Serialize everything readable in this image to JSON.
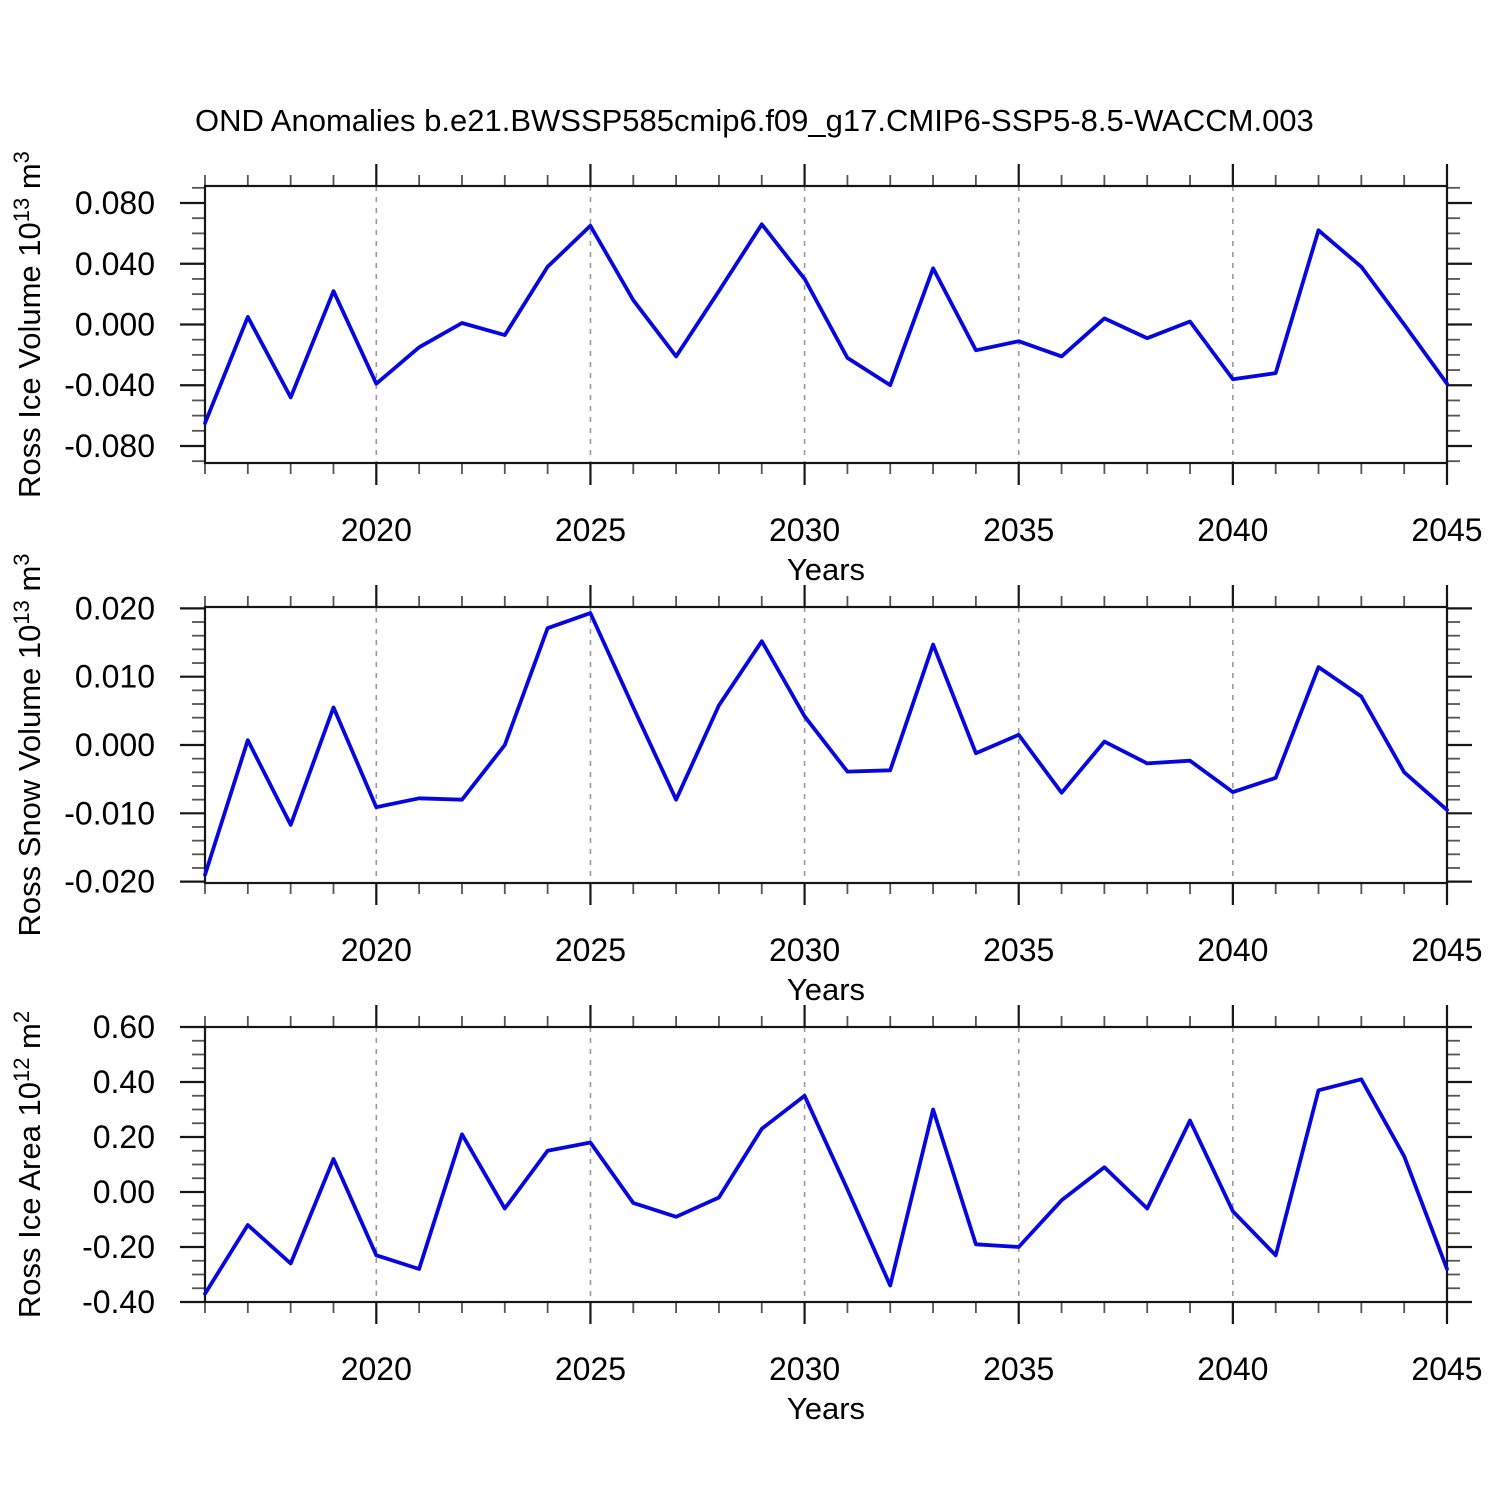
{
  "title": "OND Anomalies b.e21.BWSSP585cmip6.f09_g17.CMIP6-SSP5-8.5-WACCM.003",
  "colors": {
    "series_line": "#0606e0",
    "grid_dash": "#9a9a9a",
    "axis": "#161616",
    "minor_tick": "#555555",
    "text": "#000000",
    "background": "#ffffff"
  },
  "chart_data": [
    {
      "type": "line",
      "name": "ross-ice-volume",
      "ylabel_segments": [
        {
          "t": "Ross Ice Volume 10"
        },
        {
          "t": "13",
          "sup": true
        },
        {
          "t": " m"
        },
        {
          "t": "3",
          "sup": true
        }
      ],
      "xlabel": "Years",
      "xlim": [
        2016,
        2045
      ],
      "ylim": [
        -0.0912,
        0.0912
      ],
      "grid_on": true,
      "grid_years": [
        2020,
        2025,
        2030,
        2035,
        2040,
        2045
      ],
      "xticks_major": [
        {
          "v": 2020,
          "label": "2020"
        },
        {
          "v": 2025,
          "label": "2025"
        },
        {
          "v": 2030,
          "label": "2030"
        },
        {
          "v": 2035,
          "label": "2035"
        },
        {
          "v": 2040,
          "label": "2040"
        },
        {
          "v": 2045,
          "label": "2045"
        }
      ],
      "yticks": [
        {
          "v": 0.08,
          "label": "0.080"
        },
        {
          "v": 0.04,
          "label": "0.040"
        },
        {
          "v": 0.0,
          "label": "0.000"
        },
        {
          "v": -0.04,
          "label": "-0.040"
        },
        {
          "v": -0.08,
          "label": "-0.080"
        }
      ],
      "yticks_minor": [
        -0.09,
        -0.07,
        -0.06,
        -0.05,
        -0.03,
        -0.02,
        -0.01,
        0.01,
        0.02,
        0.03,
        0.05,
        0.06,
        0.07,
        0.09
      ],
      "x": [
        2016,
        2017,
        2018,
        2019,
        2020,
        2021,
        2022,
        2023,
        2024,
        2025,
        2026,
        2027,
        2028,
        2029,
        2030,
        2031,
        2032,
        2033,
        2034,
        2035,
        2036,
        2037,
        2038,
        2039,
        2040,
        2041,
        2042,
        2043,
        2044,
        2045
      ],
      "values": [
        -0.065,
        0.005,
        -0.048,
        0.022,
        -0.039,
        -0.015,
        0.001,
        -0.007,
        0.038,
        0.065,
        0.016,
        -0.021,
        0.022,
        0.066,
        0.03,
        -0.022,
        -0.04,
        0.037,
        -0.017,
        -0.011,
        -0.021,
        0.004,
        -0.009,
        0.002,
        -0.036,
        -0.032,
        0.062,
        0.038,
        0.0,
        -0.039
      ]
    },
    {
      "type": "line",
      "name": "ross-snow-volume",
      "ylabel_segments": [
        {
          "t": "Ross Snow Volume 10"
        },
        {
          "t": "13",
          "sup": true
        },
        {
          "t": " m"
        },
        {
          "t": "3",
          "sup": true
        }
      ],
      "xlabel": "Years",
      "xlim": [
        2016,
        2045
      ],
      "ylim": [
        -0.0202,
        0.0202
      ],
      "grid_on": true,
      "grid_years": [
        2020,
        2025,
        2030,
        2035,
        2040,
        2045
      ],
      "xticks_major": [
        {
          "v": 2020,
          "label": "2020"
        },
        {
          "v": 2025,
          "label": "2025"
        },
        {
          "v": 2030,
          "label": "2030"
        },
        {
          "v": 2035,
          "label": "2035"
        },
        {
          "v": 2040,
          "label": "2040"
        },
        {
          "v": 2045,
          "label": "2045"
        }
      ],
      "yticks": [
        {
          "v": 0.02,
          "label": "0.020"
        },
        {
          "v": 0.01,
          "label": "0.010"
        },
        {
          "v": 0.0,
          "label": "0.000"
        },
        {
          "v": -0.01,
          "label": "-0.010"
        },
        {
          "v": -0.02,
          "label": "-0.020"
        }
      ],
      "yticks_minor": [
        -0.018,
        -0.016,
        -0.014,
        -0.012,
        -0.008,
        -0.006,
        -0.004,
        -0.002,
        0.002,
        0.004,
        0.006,
        0.008,
        0.012,
        0.014,
        0.016,
        0.018
      ],
      "x": [
        2016,
        2017,
        2018,
        2019,
        2020,
        2021,
        2022,
        2023,
        2024,
        2025,
        2026,
        2027,
        2028,
        2029,
        2030,
        2031,
        2032,
        2033,
        2034,
        2035,
        2036,
        2037,
        2038,
        2039,
        2040,
        2041,
        2042,
        2043,
        2044,
        2045
      ],
      "values": [
        -0.019,
        0.0007,
        -0.0117,
        0.0055,
        -0.0091,
        -0.0078,
        -0.008,
        0.0,
        0.0171,
        0.0193,
        0.0055,
        -0.008,
        0.0058,
        0.0152,
        0.0042,
        -0.0039,
        -0.0037,
        0.0147,
        -0.0012,
        0.0015,
        -0.007,
        0.0005,
        -0.0027,
        -0.0023,
        -0.0069,
        -0.0048,
        0.0114,
        0.0071,
        -0.004,
        -0.0095
      ]
    },
    {
      "type": "line",
      "name": "ross-ice-area",
      "ylabel_segments": [
        {
          "t": "Ross Ice Area 10"
        },
        {
          "t": "12",
          "sup": true
        },
        {
          "t": " m"
        },
        {
          "t": "2",
          "sup": true
        }
      ],
      "xlabel": "Years",
      "xlim": [
        2016,
        2045
      ],
      "ylim": [
        -0.4,
        0.6
      ],
      "grid_on": true,
      "grid_years": [
        2020,
        2025,
        2030,
        2035,
        2040,
        2045
      ],
      "xticks_major": [
        {
          "v": 2020,
          "label": "2020"
        },
        {
          "v": 2025,
          "label": "2025"
        },
        {
          "v": 2030,
          "label": "2030"
        },
        {
          "v": 2035,
          "label": "2035"
        },
        {
          "v": 2040,
          "label": "2040"
        },
        {
          "v": 2045,
          "label": "2045"
        }
      ],
      "yticks": [
        {
          "v": 0.6,
          "label": "0.60"
        },
        {
          "v": 0.4,
          "label": "0.40"
        },
        {
          "v": 0.2,
          "label": "0.20"
        },
        {
          "v": 0.0,
          "label": "0.00"
        },
        {
          "v": -0.2,
          "label": "-0.20"
        },
        {
          "v": -0.4,
          "label": "-0.40"
        }
      ],
      "yticks_minor": [
        -0.35,
        -0.3,
        -0.25,
        -0.15,
        -0.1,
        -0.05,
        0.05,
        0.1,
        0.15,
        0.25,
        0.3,
        0.35,
        0.45,
        0.5,
        0.55
      ],
      "x": [
        2016,
        2017,
        2018,
        2019,
        2020,
        2021,
        2022,
        2023,
        2024,
        2025,
        2026,
        2027,
        2028,
        2029,
        2030,
        2031,
        2032,
        2033,
        2034,
        2035,
        2036,
        2037,
        2038,
        2039,
        2040,
        2041,
        2042,
        2043,
        2044,
        2045
      ],
      "values": [
        -0.37,
        -0.12,
        -0.26,
        0.12,
        -0.23,
        -0.28,
        0.21,
        -0.06,
        0.15,
        0.18,
        -0.04,
        -0.09,
        -0.02,
        0.23,
        0.35,
        0.01,
        -0.34,
        0.3,
        -0.19,
        -0.2,
        -0.03,
        0.09,
        -0.06,
        0.26,
        -0.07,
        -0.23,
        0.37,
        0.41,
        0.13,
        -0.28
      ]
    }
  ]
}
